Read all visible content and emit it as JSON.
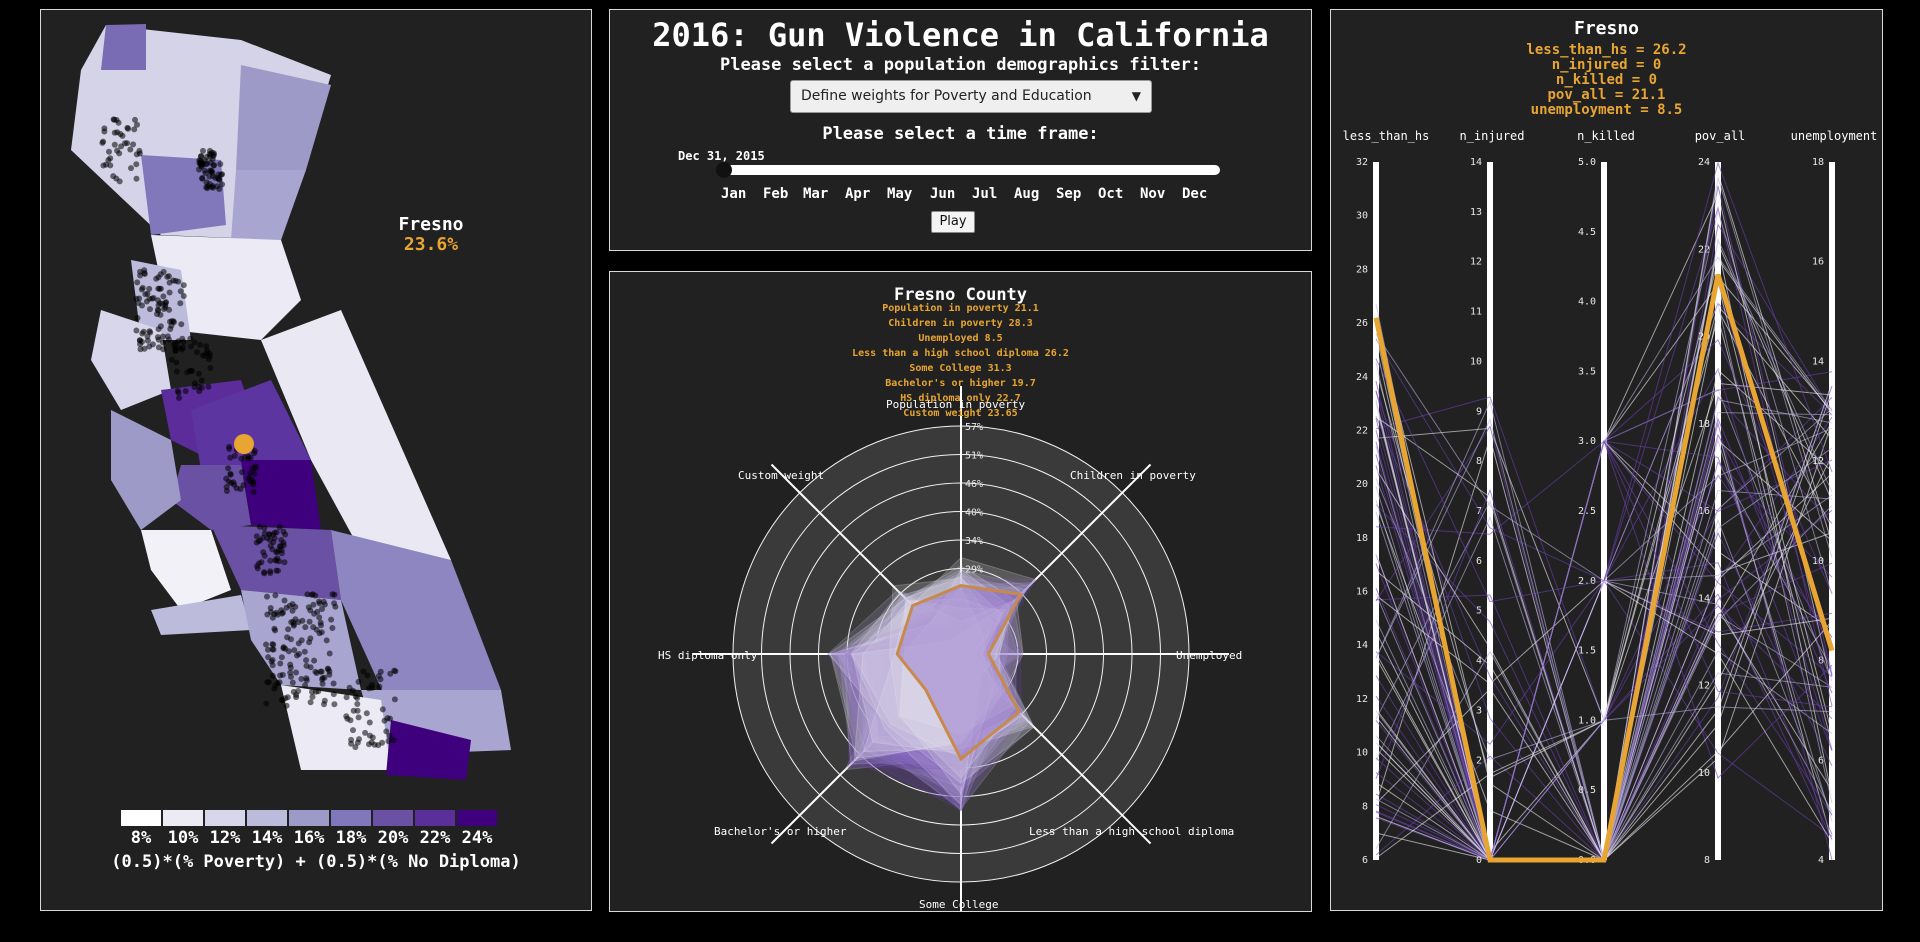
{
  "app": {
    "title": "2016: Gun Violence in California",
    "filter_label": "Please select a population demographics filter:",
    "filter_selected": "Define weights for Poverty and Education",
    "time_label": "Please select a time frame:",
    "slider_date": "Dec 31, 2015",
    "months": [
      "Jan",
      "Feb",
      "Mar",
      "Apr",
      "May",
      "Jun",
      "Jul",
      "Aug",
      "Sep",
      "Oct",
      "Nov",
      "Dec"
    ],
    "play_label": "Play"
  },
  "map": {
    "hover_county": "Fresno",
    "hover_value": "23.6%",
    "legend_labels": [
      "8%",
      "10%",
      "12%",
      "14%",
      "16%",
      "18%",
      "20%",
      "22%",
      "24%"
    ],
    "legend_colors": [
      "#ffffff",
      "#ecebf4",
      "#d7d6ea",
      "#bcbbdc",
      "#9e9ac8",
      "#8078ba",
      "#6a51a3",
      "#5a3098",
      "#3f007d"
    ],
    "legend_formula": "(0.5)*(% Poverty) + (0.5)*(% No Diploma)",
    "highlight_color": "#e8a531"
  },
  "radar": {
    "title": "Fresno County",
    "stats": [
      "Population in poverty 21.1",
      "Children in poverty 28.3",
      "Unemployed 8.5",
      "Less than a high school diploma 26.2",
      "Some College 31.3",
      "Bachelor's or higher 19.7",
      "HS diploma only 22.7",
      "Custom weight 23.65"
    ],
    "axes": [
      "Population in poverty",
      "Children in poverty",
      "Unemployed",
      "Less than a high school diploma",
      "Some College",
      "Bachelor's or higher",
      "HS diploma only",
      "Custom weight"
    ],
    "ring_labels": [
      "23%",
      "29%",
      "34%",
      "40%",
      "46%",
      "51%",
      "57%"
    ]
  },
  "parallel": {
    "title": "Fresno",
    "stats": [
      "less_than_hs = 26.2",
      "n_injured = 0",
      "n_killed = 0",
      "pov_all = 21.1",
      "unemployment = 8.5"
    ],
    "axes": [
      "less_than_hs",
      "n_injured",
      "n_killed",
      "pov_all",
      "unemployment"
    ],
    "ticks": [
      [
        "32",
        "30",
        "28",
        "26",
        "24",
        "22",
        "20",
        "18",
        "16",
        "14",
        "12",
        "10",
        "8",
        "6"
      ],
      [
        "14",
        "13",
        "12",
        "11",
        "10",
        "9",
        "8",
        "7",
        "6",
        "5",
        "4",
        "3",
        "2",
        "1",
        "0"
      ],
      [
        "5.0",
        "4.5",
        "4.0",
        "3.5",
        "3.0",
        "2.5",
        "2.0",
        "1.5",
        "1.0",
        "0.5",
        "0.0"
      ],
      [
        "24",
        "22",
        "20",
        "18",
        "16",
        "14",
        "12",
        "10",
        "8"
      ],
      [
        "18",
        "16",
        "14",
        "12",
        "10",
        "8",
        "6",
        "4"
      ]
    ]
  },
  "chart_data": {
    "type": "line",
    "title": "Fresno",
    "categories": [
      "less_than_hs",
      "n_injured",
      "n_killed",
      "pov_all",
      "unemployment"
    ],
    "series": [
      {
        "name": "Fresno",
        "values": [
          26.2,
          0,
          0,
          21.1,
          8.5
        ]
      }
    ],
    "ranges": {
      "less_than_hs": [
        6,
        32
      ],
      "n_injured": [
        0,
        14
      ],
      "n_killed": [
        0,
        5
      ],
      "pov_all": [
        6,
        24
      ],
      "unemployment": [
        4,
        19
      ]
    }
  }
}
